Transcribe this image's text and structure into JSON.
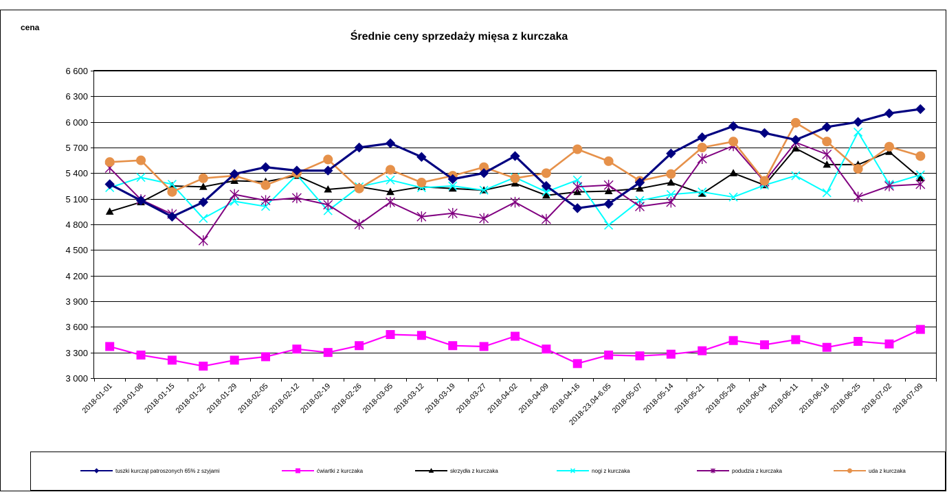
{
  "chart_data": {
    "type": "line",
    "title": "Średnie ceny sprzedaży mięsa z kurczaka",
    "ylabel": "cena",
    "xlabel": "",
    "ylim": [
      3000,
      6600
    ],
    "y_ticks": [
      3000,
      3300,
      3600,
      3900,
      4200,
      4500,
      4800,
      5100,
      5400,
      5700,
      6000,
      6300,
      6600
    ],
    "y_tick_labels": [
      "3 000",
      "3 300",
      "3 600",
      "3 900",
      "4 200",
      "4 500",
      "4 800",
      "5 100",
      "5 400",
      "5 700",
      "6 000",
      "6 300",
      "6 600"
    ],
    "grid": true,
    "legend_position": "bottom",
    "categories": [
      "2018-01-01",
      "2018-01-08",
      "2018-01-15",
      "2018-01-22",
      "2018-01-29",
      "2018-02-05",
      "2018-02-12",
      "2018-02-19",
      "2018-02-26",
      "2018-03-05",
      "2018-03-12",
      "2018-03-19",
      "2018-03-27",
      "2018-04-02",
      "2018-04-09",
      "2018-04-16",
      "2018-23.04-6.05",
      "2018-05-07",
      "2018-05-14",
      "2018-05-21",
      "2018-05-28",
      "2018-06-04",
      "2018-06-11",
      "2018-06-18",
      "2018-06-25",
      "2018-07-02",
      "2018-07-09"
    ],
    "series": [
      {
        "name": "tuszki kurcząt patroszonych 65% z szyjami",
        "color": "#000080",
        "marker": "diamond",
        "values": [
          5270,
          5080,
          4890,
          5060,
          5390,
          5470,
          5430,
          5430,
          5700,
          5750,
          5590,
          5330,
          5400,
          5600,
          5250,
          4990,
          5040,
          5290,
          5630,
          5820,
          5950,
          5870,
          5790,
          5940,
          6000,
          6100,
          6150
        ]
      },
      {
        "name": "ćwiartki z kurczaka",
        "color": "#FF00FF",
        "marker": "square",
        "values": [
          3370,
          3270,
          3210,
          3140,
          3210,
          3250,
          3340,
          3300,
          3380,
          3510,
          3500,
          3380,
          3370,
          3490,
          3340,
          3170,
          3270,
          3260,
          3280,
          3320,
          3440,
          3390,
          3450,
          3360,
          3430,
          3400,
          3570
        ]
      },
      {
        "name": "skrzydła z kurczaka",
        "color": "#000000",
        "marker": "triangle",
        "values": [
          4950,
          5060,
          5250,
          5240,
          5310,
          5300,
          5370,
          5210,
          5240,
          5180,
          5240,
          5220,
          5200,
          5280,
          5140,
          5180,
          5190,
          5220,
          5290,
          5160,
          5400,
          5260,
          5690,
          5500,
          5500,
          5650,
          5340
        ]
      },
      {
        "name": "nogi z kurczaka",
        "color": "#00FFFF",
        "marker": "x",
        "values": [
          5230,
          5350,
          5270,
          4870,
          5070,
          5010,
          5380,
          4960,
          5240,
          5320,
          5230,
          5250,
          5200,
          5350,
          5180,
          5320,
          4790,
          5080,
          5150,
          5180,
          5120,
          5260,
          5370,
          5170,
          5880,
          5270,
          5380
        ]
      },
      {
        "name": "podudzia z kurczaka",
        "color": "#800080",
        "marker": "star",
        "values": [
          5460,
          5090,
          4920,
          4610,
          5150,
          5080,
          5110,
          5030,
          4800,
          5060,
          4890,
          4930,
          4870,
          5060,
          4860,
          5240,
          5260,
          5010,
          5060,
          5570,
          5720,
          5300,
          5760,
          5620,
          5120,
          5250,
          5270
        ]
      },
      {
        "name": "uda z kurczaka",
        "color": "#E6914A",
        "marker": "circle",
        "values": [
          5530,
          5550,
          5180,
          5340,
          5370,
          5260,
          5400,
          5560,
          5220,
          5440,
          5290,
          5370,
          5470,
          5340,
          5400,
          5680,
          5540,
          5310,
          5390,
          5700,
          5770,
          5310,
          5990,
          5770,
          5450,
          5710,
          5600
        ]
      }
    ]
  }
}
